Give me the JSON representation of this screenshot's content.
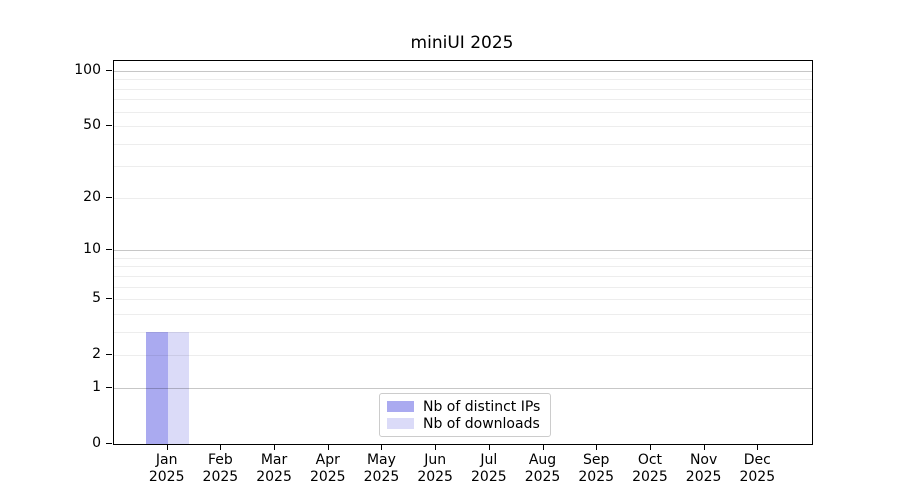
{
  "title": "miniUI 2025",
  "chart_data": {
    "type": "bar",
    "title": "miniUI 2025",
    "categories": [
      "Jan",
      "Feb",
      "Mar",
      "Apr",
      "May",
      "Jun",
      "Jul",
      "Aug",
      "Sep",
      "Oct",
      "Nov",
      "Dec"
    ],
    "x_tick_year": "2025",
    "series": [
      {
        "name": "Nb of distinct IPs",
        "color": "#aaaaf0",
        "values": [
          3,
          0,
          0,
          0,
          0,
          0,
          0,
          0,
          0,
          0,
          0,
          0
        ]
      },
      {
        "name": "Nb of downloads",
        "color": "#dbdbf8",
        "values": [
          3,
          0,
          0,
          0,
          0,
          0,
          0,
          0,
          0,
          0,
          0,
          0
        ]
      }
    ],
    "y_axis": {
      "scale": "log1p",
      "tick_values": [
        0,
        1,
        2,
        5,
        10,
        20,
        50,
        100
      ],
      "tick_labels": [
        "0",
        "1",
        "2",
        "5",
        "10",
        "20",
        "50",
        "100"
      ],
      "major_gridlines": [
        1,
        10,
        100
      ],
      "minor_gridlines": [
        2,
        3,
        4,
        5,
        6,
        7,
        8,
        9,
        20,
        30,
        40,
        50,
        60,
        70,
        80,
        90
      ],
      "ylim": [
        0,
        113
      ]
    },
    "xlabel": "",
    "ylabel": "",
    "grid": true,
    "legend": {
      "position": "lower center",
      "entries": [
        "Nb of distinct IPs",
        "Nb of downloads"
      ]
    }
  },
  "colors": {
    "background": "#ffffff",
    "spine": "#000000",
    "major_grid": "rgba(0,0,0,0.22)",
    "minor_grid": "rgba(0,0,0,0.07)",
    "series_1": "#aaaaf0",
    "series_2": "#dbdbf8",
    "legend_border": "#cccccc"
  }
}
